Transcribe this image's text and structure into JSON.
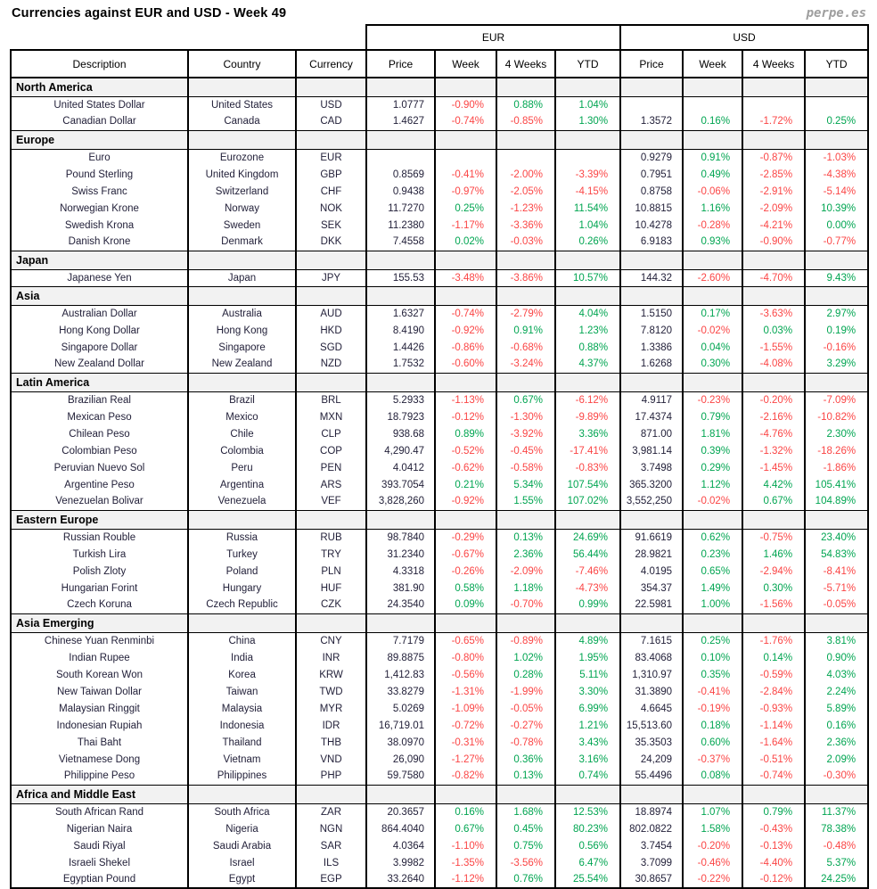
{
  "title": "Currencies against EUR and USD - Week 49",
  "logo": "perpe.es",
  "colors": {
    "positive": "#00a551",
    "negative": "#fb4545",
    "section_bg": "#f2f2f2",
    "border": "#000000",
    "logo_gray": "#9e9e9e"
  },
  "table": {
    "group_headers": [
      "EUR",
      "USD"
    ],
    "columns": [
      "Description",
      "Country",
      "Currency",
      "Price",
      "Week",
      "4 Weeks",
      "YTD",
      "Price",
      "Week",
      "4 Weeks",
      "YTD"
    ],
    "sections": [
      {
        "name": "North America",
        "rows": [
          {
            "description": "United States Dollar",
            "country": "United States",
            "currency": "USD",
            "eur": [
              "1.0777",
              "-0.90%",
              "0.88%",
              "1.04%"
            ],
            "usd": [
              "",
              "",
              "",
              ""
            ]
          },
          {
            "description": "Canadian Dollar",
            "country": "Canada",
            "currency": "CAD",
            "eur": [
              "1.4627",
              "-0.74%",
              "-0.85%",
              "1.30%"
            ],
            "usd": [
              "1.3572",
              "0.16%",
              "-1.72%",
              "0.25%"
            ]
          }
        ]
      },
      {
        "name": "Europe",
        "rows": [
          {
            "description": "Euro",
            "country": "Eurozone",
            "currency": "EUR",
            "eur": [
              "",
              "",
              "",
              ""
            ],
            "usd": [
              "0.9279",
              "0.91%",
              "-0.87%",
              "-1.03%"
            ]
          },
          {
            "description": "Pound Sterling",
            "country": "United Kingdom",
            "currency": "GBP",
            "eur": [
              "0.8569",
              "-0.41%",
              "-2.00%",
              "-3.39%"
            ],
            "usd": [
              "0.7951",
              "0.49%",
              "-2.85%",
              "-4.38%"
            ]
          },
          {
            "description": "Swiss Franc",
            "country": "Switzerland",
            "currency": "CHF",
            "eur": [
              "0.9438",
              "-0.97%",
              "-2.05%",
              "-4.15%"
            ],
            "usd": [
              "0.8758",
              "-0.06%",
              "-2.91%",
              "-5.14%"
            ]
          },
          {
            "description": "Norwegian Krone",
            "country": "Norway",
            "currency": "NOK",
            "eur": [
              "11.7270",
              "0.25%",
              "-1.23%",
              "11.54%"
            ],
            "usd": [
              "10.8815",
              "1.16%",
              "-2.09%",
              "10.39%"
            ]
          },
          {
            "description": "Swedish Krona",
            "country": "Sweden",
            "currency": "SEK",
            "eur": [
              "11.2380",
              "-1.17%",
              "-3.36%",
              "1.04%"
            ],
            "usd": [
              "10.4278",
              "-0.28%",
              "-4.21%",
              "0.00%"
            ]
          },
          {
            "description": "Danish Krone",
            "country": "Denmark",
            "currency": "DKK",
            "eur": [
              "7.4558",
              "0.02%",
              "-0.03%",
              "0.26%"
            ],
            "usd": [
              "6.9183",
              "0.93%",
              "-0.90%",
              "-0.77%"
            ]
          }
        ]
      },
      {
        "name": "Japan",
        "rows": [
          {
            "description": "Japanese Yen",
            "country": "Japan",
            "currency": "JPY",
            "eur": [
              "155.53",
              "-3.48%",
              "-3.86%",
              "10.57%"
            ],
            "usd": [
              "144.32",
              "-2.60%",
              "-4.70%",
              "9.43%"
            ]
          }
        ]
      },
      {
        "name": "Asia",
        "rows": [
          {
            "description": "Australian Dollar",
            "country": "Australia",
            "currency": "AUD",
            "eur": [
              "1.6327",
              "-0.74%",
              "-2.79%",
              "4.04%"
            ],
            "usd": [
              "1.5150",
              "0.17%",
              "-3.63%",
              "2.97%"
            ]
          },
          {
            "description": "Hong Kong Dollar",
            "country": "Hong Kong",
            "currency": "HKD",
            "eur": [
              "8.4190",
              "-0.92%",
              "0.91%",
              "1.23%"
            ],
            "usd": [
              "7.8120",
              "-0.02%",
              "0.03%",
              "0.19%"
            ]
          },
          {
            "description": "Singapore Dollar",
            "country": "Singapore",
            "currency": "SGD",
            "eur": [
              "1.4426",
              "-0.86%",
              "-0.68%",
              "0.88%"
            ],
            "usd": [
              "1.3386",
              "0.04%",
              "-1.55%",
              "-0.16%"
            ]
          },
          {
            "description": "New Zealand Dollar",
            "country": "New Zealand",
            "currency": "NZD",
            "eur": [
              "1.7532",
              "-0.60%",
              "-3.24%",
              "4.37%"
            ],
            "usd": [
              "1.6268",
              "0.30%",
              "-4.08%",
              "3.29%"
            ]
          }
        ]
      },
      {
        "name": "Latin America",
        "rows": [
          {
            "description": "Brazilian Real",
            "country": "Brazil",
            "currency": "BRL",
            "eur": [
              "5.2933",
              "-1.13%",
              "0.67%",
              "-6.12%"
            ],
            "usd": [
              "4.9117",
              "-0.23%",
              "-0.20%",
              "-7.09%"
            ]
          },
          {
            "description": "Mexican Peso",
            "country": "Mexico",
            "currency": "MXN",
            "eur": [
              "18.7923",
              "-0.12%",
              "-1.30%",
              "-9.89%"
            ],
            "usd": [
              "17.4374",
              "0.79%",
              "-2.16%",
              "-10.82%"
            ]
          },
          {
            "description": "Chilean Peso",
            "country": "Chile",
            "currency": "CLP",
            "eur": [
              "938.68",
              "0.89%",
              "-3.92%",
              "3.36%"
            ],
            "usd": [
              "871.00",
              "1.81%",
              "-4.76%",
              "2.30%"
            ]
          },
          {
            "description": "Colombian Peso",
            "country": "Colombia",
            "currency": "COP",
            "eur": [
              "4,290.47",
              "-0.52%",
              "-0.45%",
              "-17.41%"
            ],
            "usd": [
              "3,981.14",
              "0.39%",
              "-1.32%",
              "-18.26%"
            ]
          },
          {
            "description": "Peruvian Nuevo Sol",
            "country": "Peru",
            "currency": "PEN",
            "eur": [
              "4.0412",
              "-0.62%",
              "-0.58%",
              "-0.83%"
            ],
            "usd": [
              "3.7498",
              "0.29%",
              "-1.45%",
              "-1.86%"
            ]
          },
          {
            "description": "Argentine Peso",
            "country": "Argentina",
            "currency": "ARS",
            "eur": [
              "393.7054",
              "0.21%",
              "5.34%",
              "107.54%"
            ],
            "usd": [
              "365.3200",
              "1.12%",
              "4.42%",
              "105.41%"
            ]
          },
          {
            "description": "Venezuelan Bolivar",
            "country": "Venezuela",
            "currency": "VEF",
            "eur": [
              "3,828,260",
              "-0.92%",
              "1.55%",
              "107.02%"
            ],
            "usd": [
              "3,552,250",
              "-0.02%",
              "0.67%",
              "104.89%"
            ]
          }
        ]
      },
      {
        "name": "Eastern Europe",
        "rows": [
          {
            "description": "Russian Rouble",
            "country": "Russia",
            "currency": "RUB",
            "eur": [
              "98.7840",
              "-0.29%",
              "0.13%",
              "24.69%"
            ],
            "usd": [
              "91.6619",
              "0.62%",
              "-0.75%",
              "23.40%"
            ]
          },
          {
            "description": "Turkish Lira",
            "country": "Turkey",
            "currency": "TRY",
            "eur": [
              "31.2340",
              "-0.67%",
              "2.36%",
              "56.44%"
            ],
            "usd": [
              "28.9821",
              "0.23%",
              "1.46%",
              "54.83%"
            ]
          },
          {
            "description": "Polish Zloty",
            "country": "Poland",
            "currency": "PLN",
            "eur": [
              "4.3318",
              "-0.26%",
              "-2.09%",
              "-7.46%"
            ],
            "usd": [
              "4.0195",
              "0.65%",
              "-2.94%",
              "-8.41%"
            ]
          },
          {
            "description": "Hungarian Forint",
            "country": "Hungary",
            "currency": "HUF",
            "eur": [
              "381.90",
              "0.58%",
              "1.18%",
              "-4.73%"
            ],
            "usd": [
              "354.37",
              "1.49%",
              "0.30%",
              "-5.71%"
            ]
          },
          {
            "description": "Czech Koruna",
            "country": "Czech Republic",
            "currency": "CZK",
            "eur": [
              "24.3540",
              "0.09%",
              "-0.70%",
              "0.99%"
            ],
            "usd": [
              "22.5981",
              "1.00%",
              "-1.56%",
              "-0.05%"
            ]
          }
        ]
      },
      {
        "name": "Asia Emerging",
        "rows": [
          {
            "description": "Chinese Yuan Renminbi",
            "country": "China",
            "currency": "CNY",
            "eur": [
              "7.7179",
              "-0.65%",
              "-0.89%",
              "4.89%"
            ],
            "usd": [
              "7.1615",
              "0.25%",
              "-1.76%",
              "3.81%"
            ]
          },
          {
            "description": "Indian Rupee",
            "country": "India",
            "currency": "INR",
            "eur": [
              "89.8875",
              "-0.80%",
              "1.02%",
              "1.95%"
            ],
            "usd": [
              "83.4068",
              "0.10%",
              "0.14%",
              "0.90%"
            ]
          },
          {
            "description": "South Korean Won",
            "country": "Korea",
            "currency": "KRW",
            "eur": [
              "1,412.83",
              "-0.56%",
              "0.28%",
              "5.11%"
            ],
            "usd": [
              "1,310.97",
              "0.35%",
              "-0.59%",
              "4.03%"
            ]
          },
          {
            "description": "New Taiwan Dollar",
            "country": "Taiwan",
            "currency": "TWD",
            "eur": [
              "33.8279",
              "-1.31%",
              "-1.99%",
              "3.30%"
            ],
            "usd": [
              "31.3890",
              "-0.41%",
              "-2.84%",
              "2.24%"
            ]
          },
          {
            "description": "Malaysian Ringgit",
            "country": "Malaysia",
            "currency": "MYR",
            "eur": [
              "5.0269",
              "-1.09%",
              "-0.05%",
              "6.99%"
            ],
            "usd": [
              "4.6645",
              "-0.19%",
              "-0.93%",
              "5.89%"
            ]
          },
          {
            "description": "Indonesian Rupiah",
            "country": "Indonesia",
            "currency": "IDR",
            "eur": [
              "16,719.01",
              "-0.72%",
              "-0.27%",
              "1.21%"
            ],
            "usd": [
              "15,513.60",
              "0.18%",
              "-1.14%",
              "0.16%"
            ]
          },
          {
            "description": "Thai Baht",
            "country": "Thailand",
            "currency": "THB",
            "eur": [
              "38.0970",
              "-0.31%",
              "-0.78%",
              "3.43%"
            ],
            "usd": [
              "35.3503",
              "0.60%",
              "-1.64%",
              "2.36%"
            ]
          },
          {
            "description": "Vietnamese Dong",
            "country": "Vietnam",
            "currency": "VND",
            "eur": [
              "26,090",
              "-1.27%",
              "0.36%",
              "3.16%"
            ],
            "usd": [
              "24,209",
              "-0.37%",
              "-0.51%",
              "2.09%"
            ]
          },
          {
            "description": "Philippine Peso",
            "country": "Philippines",
            "currency": "PHP",
            "eur": [
              "59.7580",
              "-0.82%",
              "0.13%",
              "0.74%"
            ],
            "usd": [
              "55.4496",
              "0.08%",
              "-0.74%",
              "-0.30%"
            ]
          }
        ]
      },
      {
        "name": "Africa and Middle East",
        "rows": [
          {
            "description": "South African Rand",
            "country": "South Africa",
            "currency": "ZAR",
            "eur": [
              "20.3657",
              "0.16%",
              "1.68%",
              "12.53%"
            ],
            "usd": [
              "18.8974",
              "1.07%",
              "0.79%",
              "11.37%"
            ]
          },
          {
            "description": "Nigerian Naira",
            "country": "Nigeria",
            "currency": "NGN",
            "eur": [
              "864.4040",
              "0.67%",
              "0.45%",
              "80.23%"
            ],
            "usd": [
              "802.0822",
              "1.58%",
              "-0.43%",
              "78.38%"
            ]
          },
          {
            "description": "Saudi Riyal",
            "country": "Saudi Arabia",
            "currency": "SAR",
            "eur": [
              "4.0364",
              "-1.10%",
              "0.75%",
              "0.56%"
            ],
            "usd": [
              "3.7454",
              "-0.20%",
              "-0.13%",
              "-0.48%"
            ]
          },
          {
            "description": "Israeli Shekel",
            "country": "Israel",
            "currency": "ILS",
            "eur": [
              "3.9982",
              "-1.35%",
              "-3.56%",
              "6.47%"
            ],
            "usd": [
              "3.7099",
              "-0.46%",
              "-4.40%",
              "5.37%"
            ]
          },
          {
            "description": "Egyptian Pound",
            "country": "Egypt",
            "currency": "EGP",
            "eur": [
              "33.2640",
              "-1.12%",
              "0.76%",
              "25.54%"
            ],
            "usd": [
              "30.8657",
              "-0.22%",
              "-0.12%",
              "24.25%"
            ]
          }
        ]
      }
    ]
  }
}
